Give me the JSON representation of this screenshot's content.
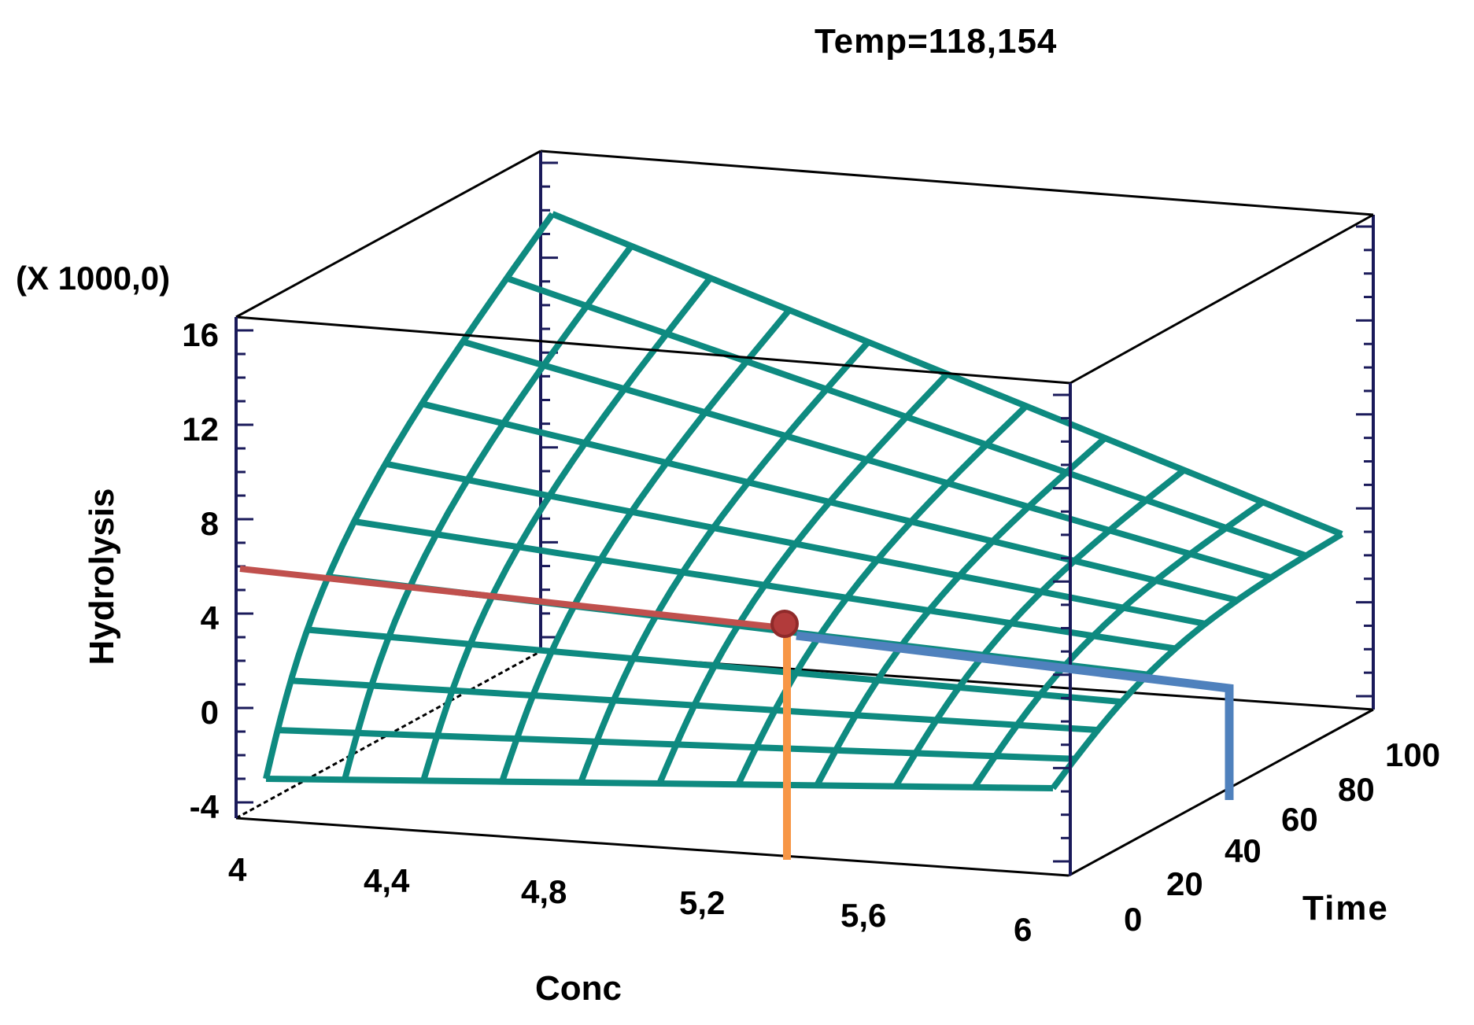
{
  "chart_data": {
    "type": "surface3d",
    "title": "Temp=118,154",
    "multiplier_label": "(X 1000,0)",
    "xlabel": "Conc",
    "ylabel": "Time",
    "zlabel": "Hydrolysis",
    "x_ticks": [
      "4",
      "4,4",
      "4,8",
      "5,2",
      "5,6",
      "6"
    ],
    "y_ticks": [
      "0",
      "20",
      "40",
      "60",
      "80",
      "100"
    ],
    "z_ticks": [
      "16",
      "12",
      "8",
      "4",
      "0",
      "-4"
    ],
    "xlim": [
      4,
      6
    ],
    "ylim": [
      0,
      100
    ],
    "zlim": [
      -4,
      16
    ],
    "z_scale": 1000,
    "grid_lines_conc": 11,
    "grid_lines_time": 11,
    "surface_corners_z_thousands": {
      "conc4_time0": -3.0,
      "conc6_time0": -3.2,
      "conc6_time100": 7.5,
      "conc4_time100": 15.5
    },
    "optimum_point": {
      "conc": 5.35,
      "time": 36,
      "hydrolysis_thousands": 3.5
    },
    "guide_lines": [
      {
        "name": "hydrolysis-guide",
        "color": "#c0504d"
      },
      {
        "name": "conc-guide",
        "color": "#f79646"
      },
      {
        "name": "time-guide",
        "color": "#4f81bd"
      }
    ],
    "colors": {
      "surface": "#0e8a80",
      "box": "#000000",
      "axis": "#1a1a5a",
      "marker": "#a83232"
    }
  }
}
